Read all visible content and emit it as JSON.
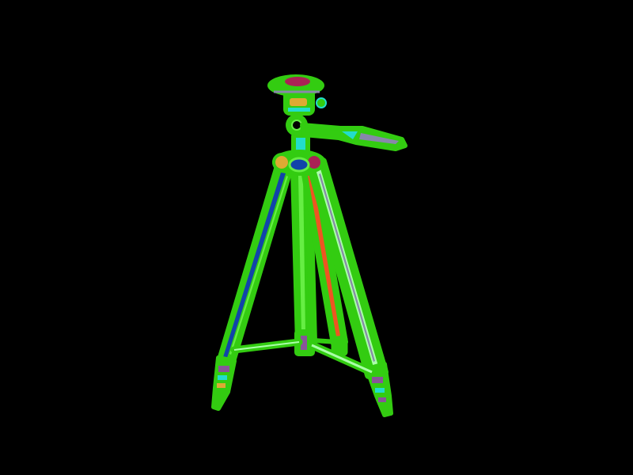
{
  "image": {
    "subject": "tripod-with-pan-head",
    "background_color": "#000000",
    "colors": {
      "outline": "#33cc11",
      "outline_light": "#66ee44",
      "leg_blue": "#1144aa",
      "leg_orange": "#ee5522",
      "leg_pale": "#aaffaa",
      "handle_grey": "#8888aa",
      "handle_cyan": "#22ddcc",
      "head_maroon": "#aa2255",
      "knob_orange": "#ddaa33",
      "foot_purple": "#885599"
    }
  }
}
